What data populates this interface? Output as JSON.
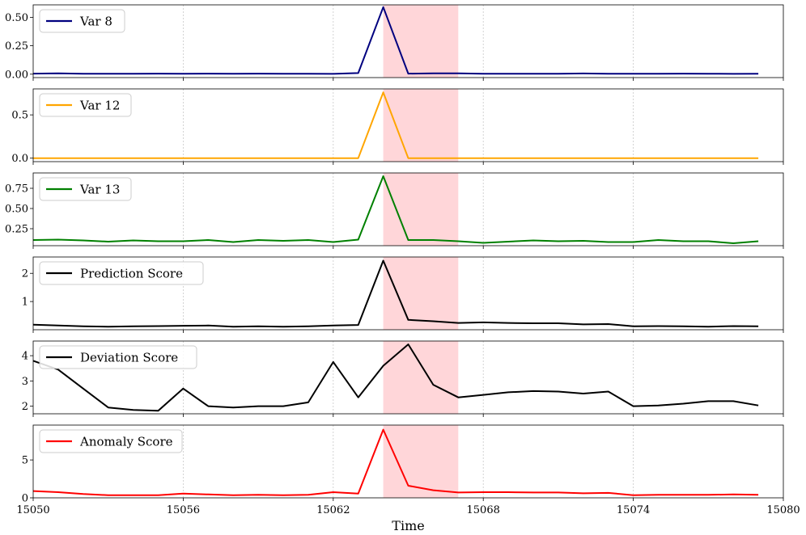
{
  "chart_data": {
    "type": "line",
    "xlabel": "Time",
    "xlim": [
      15050,
      15080
    ],
    "xticks": [
      15050,
      15056,
      15062,
      15068,
      15074,
      15080
    ],
    "grid": "vertical dotted",
    "legend_placement": "upper-left",
    "highlight": {
      "x0": 15064,
      "x1": 15067,
      "color": "#ffd6d9"
    },
    "x": [
      15050,
      15051,
      15052,
      15053,
      15054,
      15055,
      15056,
      15057,
      15058,
      15059,
      15060,
      15061,
      15062,
      15063,
      15064,
      15065,
      15066,
      15067,
      15068,
      15069,
      15070,
      15071,
      15072,
      15073,
      15074,
      15075,
      15076,
      15077,
      15078,
      15079
    ],
    "panels": [
      {
        "name": "Var 8",
        "color": "#00007f",
        "ylim": [
          -0.03,
          0.61
        ],
        "yticks": [
          0.0,
          0.25,
          0.5
        ],
        "ytick_labels": [
          "0.00",
          "0.25",
          "0.50"
        ],
        "values": [
          0.005,
          0.008,
          0.004,
          0.004,
          0.004,
          0.005,
          0.004,
          0.005,
          0.004,
          0.005,
          0.004,
          0.004,
          0.003,
          0.01,
          0.59,
          0.005,
          0.007,
          0.007,
          0.004,
          0.004,
          0.004,
          0.004,
          0.006,
          0.004,
          0.004,
          0.004,
          0.005,
          0.004,
          0.003,
          0.004
        ]
      },
      {
        "name": "Var 12",
        "color": "#ffa500",
        "ylim": [
          -0.04,
          0.8
        ],
        "yticks": [
          0.0,
          0.5
        ],
        "ytick_labels": [
          "0.0",
          "0.5"
        ],
        "values": [
          0,
          0,
          0,
          0,
          0,
          0,
          0,
          0,
          0,
          0,
          0,
          0,
          0,
          0,
          0.76,
          0,
          0,
          0,
          0,
          0,
          0,
          0,
          0,
          0,
          0,
          0,
          0,
          0,
          0,
          0
        ]
      },
      {
        "name": "Var 13",
        "color": "#008000",
        "ylim": [
          0.04,
          0.94
        ],
        "yticks": [
          0.25,
          0.5,
          0.75
        ],
        "ytick_labels": [
          "0.25",
          "0.50",
          "0.75"
        ],
        "values": [
          0.11,
          0.115,
          0.105,
          0.09,
          0.105,
          0.095,
          0.095,
          0.11,
          0.085,
          0.11,
          0.1,
          0.11,
          0.085,
          0.115,
          0.9,
          0.11,
          0.11,
          0.095,
          0.075,
          0.09,
          0.105,
          0.095,
          0.1,
          0.085,
          0.085,
          0.11,
          0.095,
          0.095,
          0.07,
          0.095
        ]
      },
      {
        "name": "Prediction Score",
        "color": "#000000",
        "ylim": [
          0.0,
          2.58
        ],
        "yticks": [
          1,
          2
        ],
        "ytick_labels": [
          "1",
          "2"
        ],
        "values": [
          0.18,
          0.15,
          0.12,
          0.11,
          0.12,
          0.13,
          0.14,
          0.15,
          0.11,
          0.12,
          0.11,
          0.12,
          0.15,
          0.17,
          2.45,
          0.35,
          0.3,
          0.24,
          0.26,
          0.24,
          0.23,
          0.23,
          0.19,
          0.2,
          0.12,
          0.13,
          0.12,
          0.11,
          0.13,
          0.12
        ]
      },
      {
        "name": "Deviation Score",
        "color": "#000000",
        "ylim": [
          1.7,
          4.58
        ],
        "yticks": [
          2,
          3,
          4
        ],
        "ytick_labels": [
          "2",
          "3",
          "4"
        ],
        "values": [
          3.8,
          3.45,
          2.7,
          1.95,
          1.85,
          1.82,
          2.7,
          2.0,
          1.95,
          2.0,
          2.0,
          2.15,
          3.75,
          2.35,
          3.6,
          4.45,
          2.85,
          2.35,
          2.45,
          2.55,
          2.6,
          2.58,
          2.5,
          2.58,
          2.0,
          2.03,
          2.1,
          2.2,
          2.2,
          2.03
        ]
      },
      {
        "name": "Anomaly Score",
        "color": "#ff0000",
        "ylim": [
          0.0,
          9.6
        ],
        "yticks": [
          0,
          5
        ],
        "ytick_labels": [
          "0",
          "5"
        ],
        "values": [
          0.9,
          0.75,
          0.5,
          0.35,
          0.35,
          0.35,
          0.55,
          0.45,
          0.35,
          0.4,
          0.35,
          0.4,
          0.75,
          0.55,
          9.0,
          1.6,
          1.0,
          0.7,
          0.75,
          0.75,
          0.7,
          0.7,
          0.6,
          0.65,
          0.35,
          0.4,
          0.4,
          0.4,
          0.45,
          0.4
        ]
      }
    ]
  }
}
